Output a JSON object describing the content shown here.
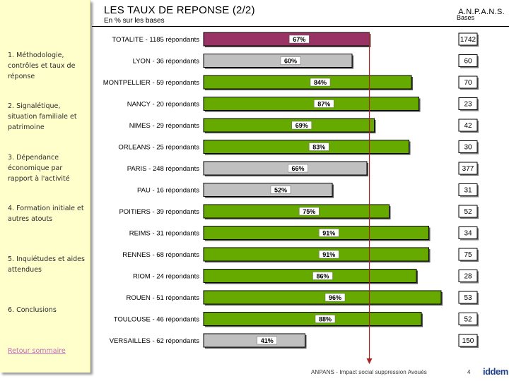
{
  "header": {
    "title": "LES TAUX DE REPONSE (2/2)",
    "subtitle": "En % sur les bases",
    "org": "A.N.P.A.N.S.",
    "bases_label": "Bases"
  },
  "sidebar": {
    "items": [
      "1. Méthodologie, contrôles et taux de réponse",
      "2. Signalétique, situation familiale et patrimoine",
      "3. Dépendance économique par rapport à l'activité",
      "4. Formation initiale et autres atouts",
      "5. Inquiétudes et aides attendues",
      "6. Conclusions"
    ],
    "link": "Retour sommaire"
  },
  "footer": {
    "text": "ANPANS - Impact social suppression Avoués",
    "page": "4",
    "logo": "iddem"
  },
  "colors": {
    "total_bar": "#993366",
    "above_ref": "#66aa00",
    "below_ref": "#c0c0c0",
    "reference_line": "#aa2222",
    "sidebar_bg": "#ffffcc"
  },
  "chart_data": {
    "type": "bar",
    "orientation": "horizontal",
    "title": "LES TAUX DE REPONSE (2/2)",
    "subtitle": "En % sur les bases",
    "unit": "%",
    "xlim": [
      0,
      100
    ],
    "reference_value": 67,
    "categories": [
      "TOTALITE - 1185 répondants",
      "LYON - 36 répondants",
      "MONTPELLIER - 59 répondants",
      "NANCY - 20 répondants",
      "NIMES - 29 répondants",
      "ORLEANS - 25 répondants",
      "PARIS - 248 répondants",
      "PAU - 16 répondants",
      "POITIERS - 39 répondants",
      "REIMS - 31 répondants",
      "RENNES - 68 répondants",
      "RIOM - 24 répondants",
      "ROUEN - 51 répondants",
      "TOULOUSE - 46 répondants",
      "VERSAILLES - 62 répondants"
    ],
    "values": [
      67,
      60,
      84,
      87,
      69,
      83,
      66,
      52,
      75,
      91,
      91,
      86,
      96,
      88,
      41
    ],
    "value_labels": [
      "67%",
      "60%",
      "84%",
      "87%",
      "69%",
      "83%",
      "66%",
      "52%",
      "75%",
      "91%",
      "91%",
      "86%",
      "96%",
      "88%",
      "41%"
    ],
    "bases": [
      "1742",
      "60",
      "70",
      "23",
      "42",
      "30",
      "377",
      "31",
      "52",
      "34",
      "75",
      "28",
      "53",
      "52",
      "150"
    ],
    "bar_colors": [
      "#993366",
      "#c0c0c0",
      "#66aa00",
      "#66aa00",
      "#66aa00",
      "#66aa00",
      "#c0c0c0",
      "#c0c0c0",
      "#66aa00",
      "#66aa00",
      "#66aa00",
      "#66aa00",
      "#66aa00",
      "#66aa00",
      "#c0c0c0"
    ]
  }
}
